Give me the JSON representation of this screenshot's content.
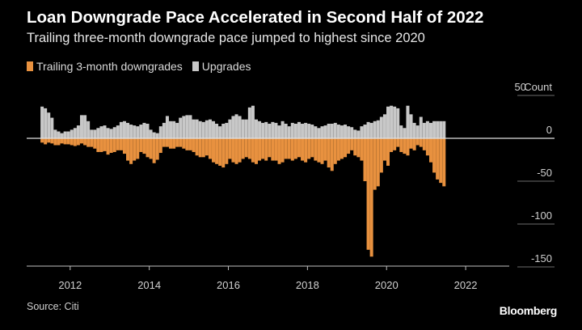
{
  "title": "Loan Downgrade Pace Accelerated in Second Half of 2022",
  "subtitle": "Trailing three-month downgrade pace jumped to highest since 2020",
  "legend": [
    {
      "label": "Trailing 3-month downgrades",
      "color": "#e8913f"
    },
    {
      "label": "Upgrades",
      "color": "#c8c8c8"
    }
  ],
  "source": "Source: Citi",
  "brand": "Bloomberg",
  "chart_data": {
    "type": "bar",
    "title": "Loan Downgrade Pace Accelerated in Second Half of 2022",
    "ylabel": "Count",
    "ylim": [
      -150,
      50
    ],
    "y_ticks": [
      50,
      0,
      -50,
      -100,
      -150
    ],
    "x_range": [
      2010.9,
      2023.0
    ],
    "x_ticks": [
      2012,
      2014,
      2016,
      2018,
      2020,
      2022
    ],
    "start": 2011.29,
    "step": 0.0833,
    "series": [
      {
        "name": "Upgrades",
        "color": "#c8c8c8",
        "values": [
          37,
          35,
          30,
          24,
          10,
          8,
          6,
          8,
          8,
          10,
          12,
          15,
          27,
          27,
          20,
          10,
          10,
          12,
          14,
          15,
          12,
          11,
          13,
          15,
          19,
          20,
          18,
          16,
          15,
          14,
          16,
          18,
          17,
          10,
          7,
          6,
          14,
          18,
          26,
          20,
          20,
          18,
          24,
          26,
          27,
          27,
          22,
          22,
          20,
          19,
          21,
          22,
          20,
          17,
          14,
          17,
          18,
          22,
          26,
          28,
          26,
          22,
          22,
          36,
          38,
          22,
          20,
          18,
          19,
          17,
          19,
          18,
          15,
          20,
          17,
          14,
          18,
          17,
          19,
          17,
          18,
          17,
          16,
          14,
          12,
          14,
          15,
          17,
          17,
          18,
          16,
          15,
          16,
          14,
          13,
          10,
          9,
          14,
          16,
          19,
          18,
          20,
          21,
          25,
          28,
          37,
          38,
          37,
          35,
          15,
          12,
          38,
          28,
          18,
          15,
          25,
          18,
          20,
          18,
          20,
          20,
          20,
          20
        ]
      },
      {
        "name": "Trailing 3-month downgrades",
        "color": "#e8913f",
        "values": [
          -5,
          -7,
          -5,
          -6,
          -8,
          -8,
          -6,
          -7,
          -7,
          -8,
          -9,
          -8,
          -6,
          -8,
          -10,
          -10,
          -12,
          -16,
          -16,
          -15,
          -19,
          -17,
          -16,
          -14,
          -14,
          -18,
          -26,
          -30,
          -26,
          -24,
          -16,
          -18,
          -22,
          -24,
          -29,
          -25,
          -17,
          -10,
          -10,
          -12,
          -12,
          -10,
          -10,
          -12,
          -14,
          -14,
          -16,
          -20,
          -22,
          -22,
          -20,
          -24,
          -28,
          -30,
          -32,
          -34,
          -30,
          -24,
          -28,
          -30,
          -28,
          -24,
          -22,
          -24,
          -28,
          -30,
          -26,
          -24,
          -26,
          -22,
          -26,
          -26,
          -30,
          -28,
          -24,
          -24,
          -26,
          -24,
          -22,
          -26,
          -28,
          -24,
          -22,
          -26,
          -28,
          -30,
          -26,
          -34,
          -38,
          -30,
          -26,
          -24,
          -22,
          -18,
          -14,
          -20,
          -22,
          -26,
          -50,
          -130,
          -138,
          -60,
          -56,
          -40,
          -26,
          -32,
          -16,
          -14,
          -10,
          -16,
          -18,
          -20,
          -12,
          -14,
          -8,
          -10,
          -14,
          -20,
          -28,
          -40,
          -48,
          -52,
          -56
        ]
      }
    ]
  }
}
